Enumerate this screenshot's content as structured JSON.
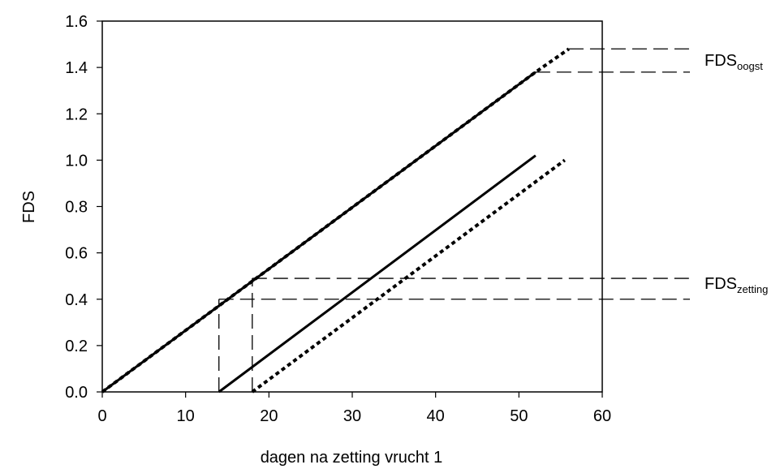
{
  "chart_data": {
    "type": "line",
    "title": "",
    "xlabel": "dagen na zetting vrucht 1",
    "ylabel": "FDS",
    "xlim": [
      0,
      60
    ],
    "ylim": [
      0,
      1.6
    ],
    "x_ticks": [
      0,
      10,
      20,
      30,
      40,
      50,
      60
    ],
    "x_tick_labels": [
      "0",
      "10",
      "20",
      "30",
      "40",
      "50",
      "60"
    ],
    "y_ticks": [
      0,
      0.2,
      0.4,
      0.6,
      0.8,
      1.0,
      1.2,
      1.4,
      1.6
    ],
    "y_tick_labels": [
      "0.0",
      "0.2",
      "0.4",
      "0.6",
      "0.8",
      "1.0",
      "1.2",
      "1.4",
      "1.6"
    ],
    "grid": false,
    "legend": "none",
    "series": [
      {
        "style": "solid",
        "color": "#000000",
        "points": [
          [
            0,
            0
          ],
          [
            52,
            1.38
          ]
        ]
      },
      {
        "style": "dotted",
        "color": "#000000",
        "points": [
          [
            0,
            0
          ],
          [
            52,
            1.38
          ],
          [
            56,
            1.48
          ]
        ]
      },
      {
        "style": "solid",
        "color": "#000000",
        "points": [
          [
            14,
            0
          ],
          [
            52,
            1.02
          ]
        ]
      },
      {
        "style": "dotted",
        "color": "#000000",
        "points": [
          [
            18,
            0
          ],
          [
            55.5,
            1.0
          ]
        ]
      }
    ],
    "reference_lines": [
      {
        "style": "dashed",
        "orientation": "horizontal",
        "y": 1.48,
        "from_x": 56,
        "to_x": 70
      },
      {
        "style": "dashed",
        "orientation": "horizontal",
        "y": 1.38,
        "from_x": 52,
        "to_x": 70
      },
      {
        "style": "dashed",
        "orientation": "horizontal",
        "y": 0.49,
        "from_x": 18,
        "to_x": 70
      },
      {
        "style": "dashed",
        "orientation": "horizontal",
        "y": 0.4,
        "from_x": 14,
        "to_x": 70
      },
      {
        "style": "dashed",
        "orientation": "vertical",
        "x": 14,
        "from_y": 0,
        "to_y": 0.4
      },
      {
        "style": "dashed",
        "orientation": "vertical",
        "x": 18,
        "from_y": 0,
        "to_y": 0.49
      }
    ],
    "annotations": [
      {
        "id": "oogst",
        "base": "FDS",
        "sub": "oogst",
        "near_y": 1.43
      },
      {
        "id": "zetting",
        "base": "FDS",
        "sub": "zetting",
        "near_y": 0.445
      }
    ]
  }
}
